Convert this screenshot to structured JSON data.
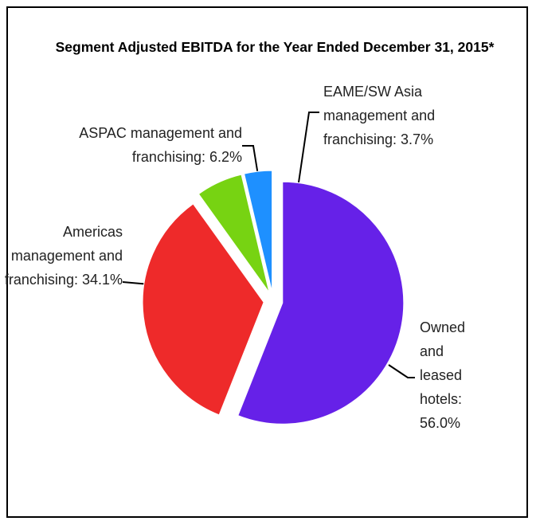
{
  "chart_data": {
    "type": "pie",
    "title": "Segment Adjusted EBITDA for the Year Ended December 31, 2015*",
    "values": [
      56.0,
      34.1,
      6.2,
      3.7
    ],
    "value_labels": [
      "Owned and leased hotels: 56.0%",
      "Americas management and franchising: 34.1%",
      "ASPAC management and franchising: 6.2%",
      "EAME/SW Asia management and franchising: 3.7%"
    ],
    "colors": [
      "#6621e8",
      "#ee2a2a",
      "#77d312",
      "#1e90ff"
    ]
  }
}
